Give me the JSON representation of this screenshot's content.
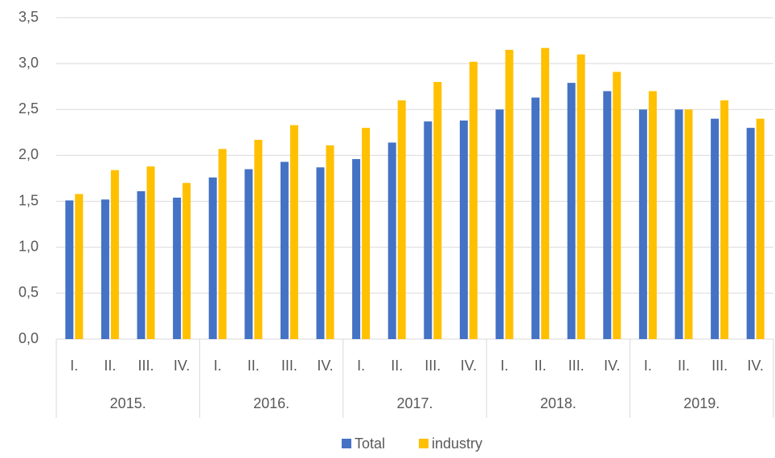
{
  "chart_data": {
    "type": "bar",
    "categories": [
      "I.",
      "II.",
      "III.",
      "IV.",
      "I.",
      "II.",
      "III.",
      "IV.",
      "I.",
      "II.",
      "III.",
      "IV.",
      "I.",
      "II.",
      "III.",
      "IV.",
      "I.",
      "II.",
      "III.",
      "IV."
    ],
    "groups": [
      "2015.",
      "2016.",
      "2017.",
      "2018.",
      "2019."
    ],
    "series": [
      {
        "name": "Total",
        "color": "#4472c4",
        "values": [
          1.51,
          1.52,
          1.61,
          1.54,
          1.76,
          1.85,
          1.93,
          1.87,
          1.96,
          2.14,
          2.37,
          2.38,
          2.5,
          2.63,
          2.79,
          2.7,
          2.5,
          2.5,
          2.4,
          2.3
        ]
      },
      {
        "name": "industry",
        "color": "#ffc000",
        "values": [
          1.58,
          1.84,
          1.88,
          1.7,
          2.07,
          2.17,
          2.33,
          2.11,
          2.3,
          2.6,
          2.8,
          3.02,
          3.15,
          3.17,
          3.1,
          2.91,
          2.7,
          2.5,
          2.6,
          2.4
        ]
      }
    ],
    "ylim": [
      0,
      3.5
    ],
    "yticks": [
      {
        "value": 0,
        "label": "0,0"
      },
      {
        "value": 0.5,
        "label": "0,5"
      },
      {
        "value": 1,
        "label": "1,0"
      },
      {
        "value": 1.5,
        "label": "1,5"
      },
      {
        "value": 2,
        "label": "2,0"
      },
      {
        "value": 2.5,
        "label": "2,5"
      },
      {
        "value": 3,
        "label": "3,0"
      },
      {
        "value": 3.5,
        "label": "3,5"
      }
    ],
    "grid": true,
    "legend": "bottom"
  }
}
